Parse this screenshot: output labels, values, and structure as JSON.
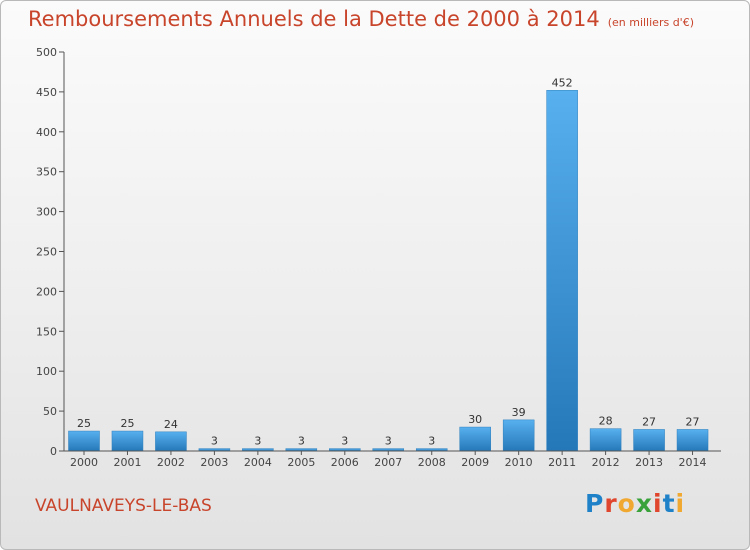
{
  "title": "Remboursements Annuels de la Dette de 2000 à 2014",
  "subtitle": "(en milliers d'€)",
  "location": "VAULNAVEYS-LE-BAS",
  "logo": {
    "text": "Proxiti",
    "letter_colors": [
      "#1f82c9",
      "#e0462e",
      "#f0a830",
      "#3aa23a",
      "#e0462e",
      "#1f82c9",
      "#f0a830"
    ]
  },
  "colors": {
    "bar_top": "#58b0ee",
    "bar_bottom": "#2578b8",
    "title": "#c8442b"
  },
  "chart_data": {
    "type": "bar",
    "title": "Remboursements Annuels de la Dette de 2000 à 2014",
    "xlabel": "",
    "ylabel": "",
    "ylim": [
      0,
      500
    ],
    "yticks": [
      0,
      50,
      100,
      150,
      200,
      250,
      300,
      350,
      400,
      450,
      500
    ],
    "grid": false,
    "categories": [
      "2000",
      "2001",
      "2002",
      "2003",
      "2004",
      "2005",
      "2006",
      "2007",
      "2008",
      "2009",
      "2010",
      "2011",
      "2012",
      "2013",
      "2014"
    ],
    "values": [
      25,
      25,
      24,
      3,
      3,
      3,
      3,
      3,
      3,
      30,
      39,
      452,
      28,
      27,
      27
    ]
  }
}
